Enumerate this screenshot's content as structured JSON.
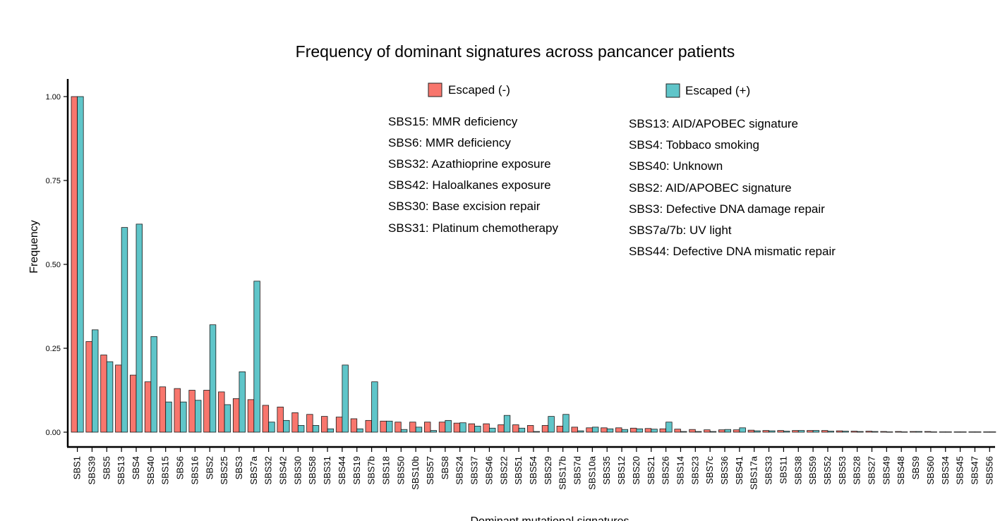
{
  "chart_data": {
    "type": "bar",
    "title": "Frequency of dominant signatures across pancancer patients",
    "xlabel": "Dominant mutational signatures",
    "ylabel": "Frequency",
    "ylim": [
      0,
      1.0
    ],
    "yticks": [
      "0.00",
      "0.25",
      "0.50",
      "0.75",
      "1.00"
    ],
    "grid": false,
    "legend_placement": "top-center",
    "categories": [
      "SBS1",
      "SBS39",
      "SBS5",
      "SBS13",
      "SBS4",
      "SBS40",
      "SBS15",
      "SBS6",
      "SBS16",
      "SBS2",
      "SBS25",
      "SBS3",
      "SBS7a",
      "SBS32",
      "SBS42",
      "SBS30",
      "SBS58",
      "SBS31",
      "SBS44",
      "SBS19",
      "SBS7b",
      "SBS18",
      "SBS50",
      "SBS10b",
      "SBS57",
      "SBS8",
      "SBS24",
      "SBS37",
      "SBS46",
      "SBS22",
      "SBS51",
      "SBS54",
      "SBS29",
      "SBS17b",
      "SBS7d",
      "SBS10a",
      "SBS35",
      "SBS12",
      "SBS20",
      "SBS21",
      "SBS26",
      "SBS14",
      "SBS23",
      "SBS7c",
      "SBS36",
      "SBS41",
      "SBS17a",
      "SBS33",
      "SBS11",
      "SBS38",
      "SBS59",
      "SBS52",
      "SBS53",
      "SBS28",
      "SBS27",
      "SBS49",
      "SBS48",
      "SBS9",
      "SBS60",
      "SBS34",
      "SBS45",
      "SBS47",
      "SBS56"
    ],
    "series": [
      {
        "name": "Escaped (-)",
        "color": "#F8766D",
        "values": [
          1.0,
          0.27,
          0.23,
          0.2,
          0.17,
          0.15,
          0.135,
          0.13,
          0.125,
          0.125,
          0.12,
          0.1,
          0.097,
          0.08,
          0.075,
          0.058,
          0.053,
          0.047,
          0.045,
          0.04,
          0.035,
          0.033,
          0.03,
          0.03,
          0.03,
          0.03,
          0.027,
          0.025,
          0.025,
          0.022,
          0.022,
          0.02,
          0.02,
          0.018,
          0.015,
          0.013,
          0.013,
          0.013,
          0.012,
          0.011,
          0.01,
          0.009,
          0.008,
          0.007,
          0.007,
          0.007,
          0.006,
          0.005,
          0.005,
          0.005,
          0.005,
          0.005,
          0.004,
          0.003,
          0.003,
          0.002,
          0.002,
          0.002,
          0.002,
          0.001,
          0.001,
          0.001,
          0.001
        ]
      },
      {
        "name": "Escaped (+)",
        "color": "#5FC5C9",
        "values": [
          1.0,
          0.305,
          0.21,
          0.61,
          0.62,
          0.285,
          0.09,
          0.09,
          0.095,
          0.32,
          0.082,
          0.18,
          0.45,
          0.03,
          0.035,
          0.02,
          0.02,
          0.01,
          0.2,
          0.01,
          0.15,
          0.033,
          0.008,
          0.015,
          0.005,
          0.035,
          0.028,
          0.018,
          0.012,
          0.05,
          0.012,
          0.002,
          0.047,
          0.053,
          0.004,
          0.015,
          0.01,
          0.008,
          0.01,
          0.009,
          0.03,
          0.002,
          0.002,
          0.002,
          0.008,
          0.013,
          0.004,
          0.004,
          0.003,
          0.005,
          0.005,
          0.003,
          0.003,
          0.002,
          0.002,
          0.001,
          0.001,
          0.002,
          0.001,
          0.001,
          0.001,
          0.001,
          0.001
        ]
      }
    ],
    "annotations": {
      "escaped_neg": [
        "SBS15: MMR deficiency",
        "SBS6: MMR deficiency",
        "SBS32: Azathioprine exposure",
        "SBS42: Haloalkanes exposure",
        "SBS30: Base excision repair",
        "SBS31: Platinum chemotherapy"
      ],
      "escaped_pos": [
        "SBS13: AID/APOBEC signature",
        "SBS4: Tobbaco smoking",
        "SBS40: Unknown",
        "SBS2: AID/APOBEC signature",
        "SBS3: Defective DNA damage repair",
        "SBS7a/7b: UV light",
        "SBS44: Defective DNA mismatic repair"
      ]
    }
  }
}
